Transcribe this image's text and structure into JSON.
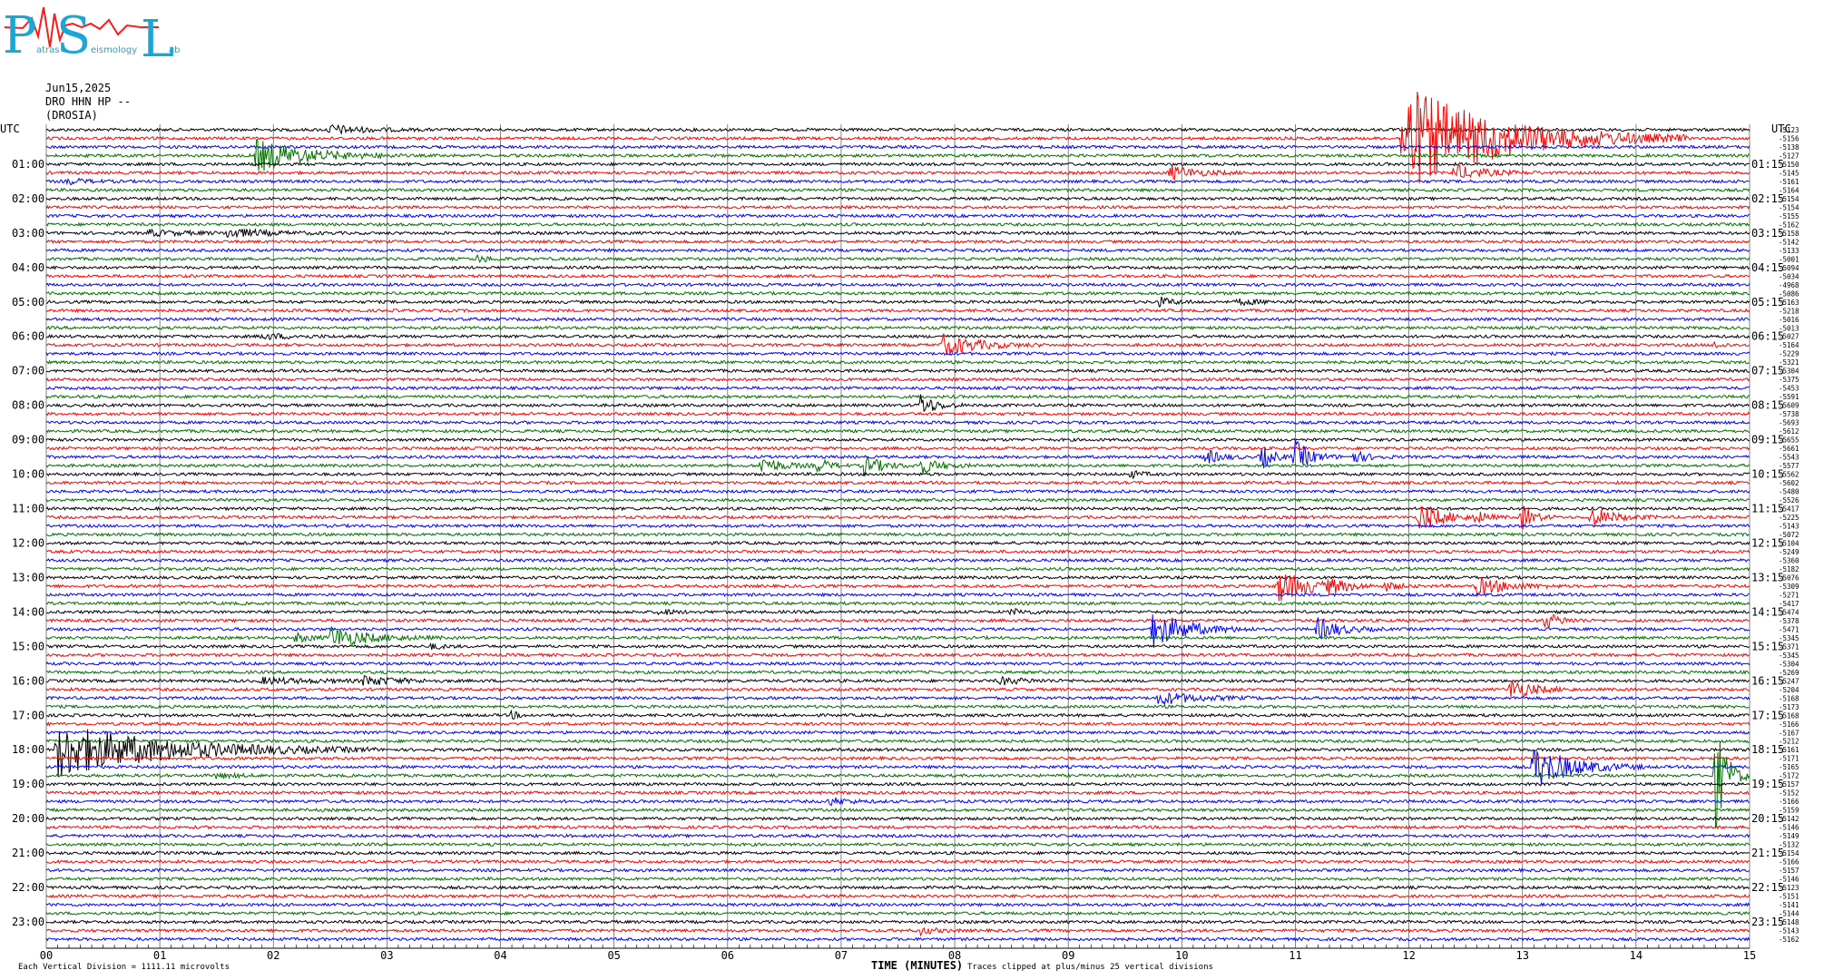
{
  "logo": {
    "letters": [
      "P",
      "S",
      "L"
    ],
    "words": [
      "atras",
      "eismology",
      "ab"
    ],
    "colors": {
      "letters": "#19a7d6",
      "wave": "#ff1a1a"
    }
  },
  "header": {
    "date": "Jun15,2025",
    "station": "DRO HHN HP --",
    "location": "(DROSIA)"
  },
  "footer": {
    "scale_note": "Each Vertical Division = 1111.11 microvolts",
    "clip_note": "Traces clipped at plus/minus 25 vertical divisions",
    "x_label": "TIME (MINUTES)"
  },
  "colors": {
    "trace_cycle": [
      "#000000",
      "#ff0000",
      "#0000ff",
      "#007000"
    ],
    "grid": "#666666"
  },
  "chart_data": {
    "type": "line",
    "title": "",
    "xlabel": "TIME (MINUTES)",
    "ylabel": "UTC",
    "y_axis_left_title": "UTC",
    "y_axis_right_title": "UTC",
    "xlim": [
      0,
      15
    ],
    "x_tick_labels": [
      "00",
      "01",
      "02",
      "03",
      "04",
      "05",
      "06",
      "07",
      "08",
      "09",
      "10",
      "11",
      "12",
      "13",
      "14",
      "15"
    ],
    "left_hour_labels": [
      "01:00",
      "02:00",
      "03:00",
      "04:00",
      "05:00",
      "06:00",
      "07:00",
      "08:00",
      "09:00",
      "10:00",
      "11:00",
      "12:00",
      "13:00",
      "14:00",
      "15:00",
      "16:00",
      "17:00",
      "18:00",
      "19:00",
      "20:00",
      "21:00",
      "22:00",
      "23:00"
    ],
    "right_hour_labels": [
      "01:15",
      "02:15",
      "03:15",
      "04:15",
      "05:15",
      "06:15",
      "07:15",
      "08:15",
      "09:15",
      "10:15",
      "11:15",
      "12:15",
      "13:15",
      "14:15",
      "15:15",
      "16:15",
      "17:15",
      "18:15",
      "19:15",
      "20:15",
      "21:15",
      "22:15",
      "23:15"
    ],
    "trace_offsets": [
      "-5123",
      "-5156",
      "-5138",
      "-5127",
      "-5150",
      "-5145",
      "-5161",
      "-5164",
      "-5154",
      "-5154",
      "-5155",
      "-5162",
      "-5158",
      "-5142",
      "-5133",
      "-5001",
      "-5094",
      "-5034",
      "-4968",
      "-5086",
      "-5163",
      "-5218",
      "-5016",
      "-5013",
      "-5027",
      "-5164",
      "-5229",
      "-5321",
      "-5304",
      "-5375",
      "-5453",
      "-5591",
      "-5609",
      "-5738",
      "-5693",
      "-5612",
      "-5655",
      "-5661",
      "-5543",
      "-5577",
      "-5562",
      "-5602",
      "-5480",
      "-5526",
      "-5417",
      "-5225",
      "-5143",
      "-5072",
      "-5104",
      "-5249",
      "-5360",
      "-5182",
      "-5076",
      "-5309",
      "-5271",
      "-5417",
      "-5474",
      "-5378",
      "-5471",
      "-5345",
      "-5371",
      "-5345",
      "-5304",
      "-5269",
      "-5247",
      "-5204",
      "-5168",
      "-5173",
      "-5168",
      "-5166",
      "-5167",
      "-5212",
      "-5161",
      "-5171",
      "-5165",
      "-5172",
      "-5157",
      "-5152",
      "-5166",
      "-5159",
      "-5142",
      "-5146",
      "-5149",
      "-5132",
      "-5154",
      "-5166",
      "-5157",
      "-5146",
      "-5123",
      "-5151",
      "-5141",
      "-5144",
      "-5148",
      "-5143",
      "-5162"
    ],
    "traces_per_hour": 4,
    "minutes_per_trace": 15,
    "events": [
      {
        "trace": 0,
        "minute": 2.5,
        "amp": 5,
        "dur": 0.9
      },
      {
        "trace": 1,
        "minute": 11.95,
        "amp": 60,
        "dur": 2.5
      },
      {
        "trace": 3,
        "minute": 1.85,
        "amp": 18,
        "dur": 1.3
      },
      {
        "trace": 5,
        "minute": 9.9,
        "amp": 8,
        "dur": 0.7
      },
      {
        "trace": 5,
        "minute": 12.4,
        "amp": 8,
        "dur": 0.8
      },
      {
        "trace": 6,
        "minute": 0.2,
        "amp": 3,
        "dur": 0.5
      },
      {
        "trace": 12,
        "minute": 0.9,
        "amp": 3,
        "dur": 1.0
      },
      {
        "trace": 12,
        "minute": 1.6,
        "amp": 5,
        "dur": 1.0
      },
      {
        "trace": 15,
        "minute": 3.8,
        "amp": 4,
        "dur": 0.3
      },
      {
        "trace": 20,
        "minute": 9.8,
        "amp": 5,
        "dur": 0.4
      },
      {
        "trace": 20,
        "minute": 10.5,
        "amp": 3,
        "dur": 0.6
      },
      {
        "trace": 24,
        "minute": 1.9,
        "amp": 3,
        "dur": 0.9
      },
      {
        "trace": 25,
        "minute": 7.9,
        "amp": 12,
        "dur": 0.9
      },
      {
        "trace": 25,
        "minute": 14.7,
        "amp": 4,
        "dur": 0.2
      },
      {
        "trace": 32,
        "minute": 7.7,
        "amp": 12,
        "dur": 0.4
      },
      {
        "trace": 38,
        "minute": 10.2,
        "amp": 9,
        "dur": 0.4
      },
      {
        "trace": 38,
        "minute": 10.7,
        "amp": 14,
        "dur": 0.3
      },
      {
        "trace": 38,
        "minute": 11.0,
        "amp": 18,
        "dur": 0.4
      },
      {
        "trace": 38,
        "minute": 11.5,
        "amp": 7,
        "dur": 0.4
      },
      {
        "trace": 39,
        "minute": 6.3,
        "amp": 10,
        "dur": 0.5
      },
      {
        "trace": 39,
        "minute": 6.8,
        "amp": 8,
        "dur": 0.3
      },
      {
        "trace": 39,
        "minute": 7.2,
        "amp": 11,
        "dur": 0.5
      },
      {
        "trace": 39,
        "minute": 7.7,
        "amp": 9,
        "dur": 0.5
      },
      {
        "trace": 40,
        "minute": 9.55,
        "amp": 4,
        "dur": 0.3
      },
      {
        "trace": 45,
        "minute": 12.1,
        "amp": 16,
        "dur": 0.6
      },
      {
        "trace": 45,
        "minute": 12.6,
        "amp": 6,
        "dur": 0.3
      },
      {
        "trace": 45,
        "minute": 13.0,
        "amp": 14,
        "dur": 0.3
      },
      {
        "trace": 45,
        "minute": 13.6,
        "amp": 11,
        "dur": 0.6
      },
      {
        "trace": 53,
        "minute": 10.85,
        "amp": 18,
        "dur": 0.8
      },
      {
        "trace": 53,
        "minute": 11.3,
        "amp": 6,
        "dur": 0.5
      },
      {
        "trace": 53,
        "minute": 11.8,
        "amp": 5,
        "dur": 0.3
      },
      {
        "trace": 53,
        "minute": 12.6,
        "amp": 10,
        "dur": 0.8
      },
      {
        "trace": 56,
        "minute": 5.4,
        "amp": 3,
        "dur": 0.4
      },
      {
        "trace": 56,
        "minute": 8.5,
        "amp": 3,
        "dur": 0.5
      },
      {
        "trace": 57,
        "minute": 13.2,
        "amp": 9,
        "dur": 0.4
      },
      {
        "trace": 58,
        "minute": 9.75,
        "amp": 20,
        "dur": 0.9
      },
      {
        "trace": 58,
        "minute": 11.2,
        "amp": 12,
        "dur": 0.6
      },
      {
        "trace": 59,
        "minute": 2.2,
        "amp": 5,
        "dur": 0.4
      },
      {
        "trace": 59,
        "minute": 2.5,
        "amp": 12,
        "dur": 1.0
      },
      {
        "trace": 60,
        "minute": 3.4,
        "amp": 3,
        "dur": 0.3
      },
      {
        "trace": 64,
        "minute": 1.9,
        "amp": 3,
        "dur": 1.6
      },
      {
        "trace": 64,
        "minute": 2.8,
        "amp": 5,
        "dur": 0.8
      },
      {
        "trace": 64,
        "minute": 8.4,
        "amp": 4,
        "dur": 0.7
      },
      {
        "trace": 65,
        "minute": 12.9,
        "amp": 12,
        "dur": 0.6
      },
      {
        "trace": 66,
        "minute": 9.8,
        "amp": 7,
        "dur": 1.0
      },
      {
        "trace": 68,
        "minute": 4.1,
        "amp": 4,
        "dur": 0.2
      },
      {
        "trace": 72,
        "minute": 0.1,
        "amp": 30,
        "dur": 2.8
      },
      {
        "trace": 74,
        "minute": 13.1,
        "amp": 24,
        "dur": 1.0
      },
      {
        "trace": 75,
        "minute": 1.5,
        "amp": 3,
        "dur": 0.5
      },
      {
        "trace": 75,
        "minute": 14.7,
        "amp": 60,
        "dur": 0.3
      },
      {
        "trace": 78,
        "minute": 6.9,
        "amp": 4,
        "dur": 0.5
      },
      {
        "trace": 93,
        "minute": 7.7,
        "amp": 4,
        "dur": 0.4
      }
    ]
  }
}
